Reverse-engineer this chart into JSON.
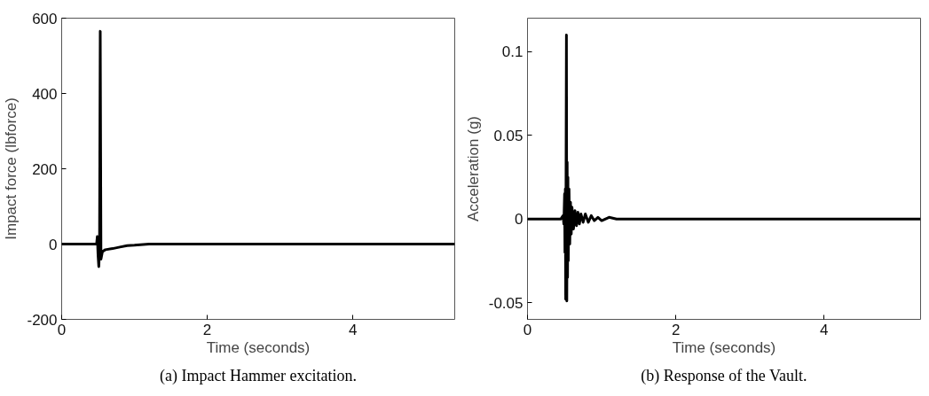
{
  "chart_data": [
    {
      "type": "line",
      "title": "(a) Impact Hammer excitation.",
      "xlabel": "Time (seconds)",
      "ylabel": "Impact force (lbforce)",
      "xlim": [
        0,
        5.4
      ],
      "xticks": [
        0,
        2,
        4
      ],
      "ylim": [
        -200,
        600
      ],
      "yticks": [
        -200,
        0,
        200,
        400,
        600
      ],
      "grid": false,
      "series": [
        {
          "color": "#000000",
          "x": [
            0,
            0.48,
            0.49,
            0.5,
            0.51,
            0.52,
            0.53,
            0.54,
            0.56,
            0.6,
            0.7,
            0.8,
            0.9,
            1.0,
            1.2,
            5.4
          ],
          "values": [
            0,
            0,
            20,
            -30,
            -60,
            -20,
            565,
            -40,
            -20,
            -15,
            -12,
            -8,
            -4,
            -3,
            0,
            0
          ]
        }
      ]
    },
    {
      "type": "line",
      "title": "(b) Response of the Vault.",
      "xlabel": "Time (seconds)",
      "ylabel": "Acceleration (g)",
      "xlim": [
        0,
        5.3
      ],
      "xticks": [
        0,
        2,
        4
      ],
      "ylim": [
        -0.06,
        0.12
      ],
      "yticks": [
        -0.05,
        0,
        0.05,
        0.1
      ],
      "grid": false,
      "series": [
        {
          "color": "#000000",
          "x": [
            0,
            0.45,
            0.48,
            0.49,
            0.5,
            0.505,
            0.51,
            0.515,
            0.525,
            0.53,
            0.535,
            0.54,
            0.545,
            0.55,
            0.56,
            0.57,
            0.58,
            0.59,
            0.6,
            0.62,
            0.64,
            0.66,
            0.68,
            0.7,
            0.72,
            0.75,
            0.78,
            0.82,
            0.86,
            0.9,
            0.95,
            1.0,
            1.1,
            1.2,
            5.3
          ],
          "values": [
            0,
            0,
            0.002,
            -0.003,
            0.015,
            -0.02,
            0.018,
            -0.048,
            0.11,
            -0.049,
            0.034,
            -0.035,
            0.025,
            -0.025,
            0.018,
            -0.015,
            0.01,
            -0.009,
            0.007,
            -0.006,
            0.005,
            -0.004,
            0.004,
            -0.003,
            0.003,
            -0.002,
            0.003,
            -0.002,
            0.002,
            -0.001,
            0.001,
            -0.001,
            0.001,
            0,
            0
          ]
        }
      ]
    }
  ]
}
